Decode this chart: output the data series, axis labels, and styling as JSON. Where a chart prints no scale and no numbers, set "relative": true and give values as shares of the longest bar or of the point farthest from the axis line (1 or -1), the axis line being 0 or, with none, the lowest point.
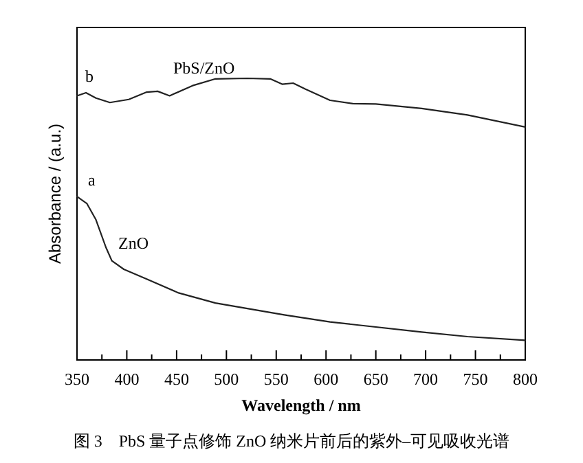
{
  "chart_data": {
    "type": "line",
    "relative": true,
    "xlabel": "Wavelength / nm",
    "ylabel": "Absorbance / (a.u.)",
    "xlim": [
      350,
      800
    ],
    "xticks": [
      350,
      {
        "value": 375,
        "label": null
      },
      400,
      {
        "value": 425,
        "label": null
      },
      450,
      {
        "value": 475,
        "label": null
      },
      500,
      {
        "value": 525,
        "label": null
      },
      550,
      {
        "value": 575,
        "label": null
      },
      600,
      {
        "value": 625,
        "label": null
      },
      650,
      {
        "value": 675,
        "label": null
      },
      700,
      {
        "value": 725,
        "label": null
      },
      750,
      {
        "value": 775,
        "label": null
      },
      800
    ],
    "tick_labels": "x",
    "grid": false,
    "marker": "none",
    "line_style": "solid",
    "series": [
      {
        "name": "a",
        "color": "#222222",
        "x": [
          350,
          360,
          369,
          379,
          385,
          397,
          420,
          452,
          489,
          558,
          604,
          696,
          742,
          800
        ],
        "values": [
          0.58,
          0.555,
          0.498,
          0.4,
          0.352,
          0.322,
          0.287,
          0.238,
          0.202,
          0.16,
          0.135,
          0.099,
          0.083,
          0.07
        ]
      },
      {
        "name": "b",
        "color": "#222222",
        "x": [
          350,
          359,
          369,
          383,
          402,
          420,
          431,
          443,
          466,
          489,
          521,
          544,
          556,
          567,
          579,
          604,
          627,
          650,
          696,
          742,
          800
        ],
        "values": [
          0.938,
          0.949,
          0.93,
          0.914,
          0.925,
          0.951,
          0.954,
          0.938,
          0.974,
          0.998,
          1.0,
          0.998,
          0.979,
          0.983,
          0.962,
          0.922,
          0.91,
          0.909,
          0.893,
          0.87,
          0.827
        ]
      }
    ],
    "annotations": [
      "ZnO",
      "PbS/ZnO",
      "图 3　PbS 量子点修饰 ZnO 纳米片前后的紫外–可见吸收光谱"
    ]
  }
}
